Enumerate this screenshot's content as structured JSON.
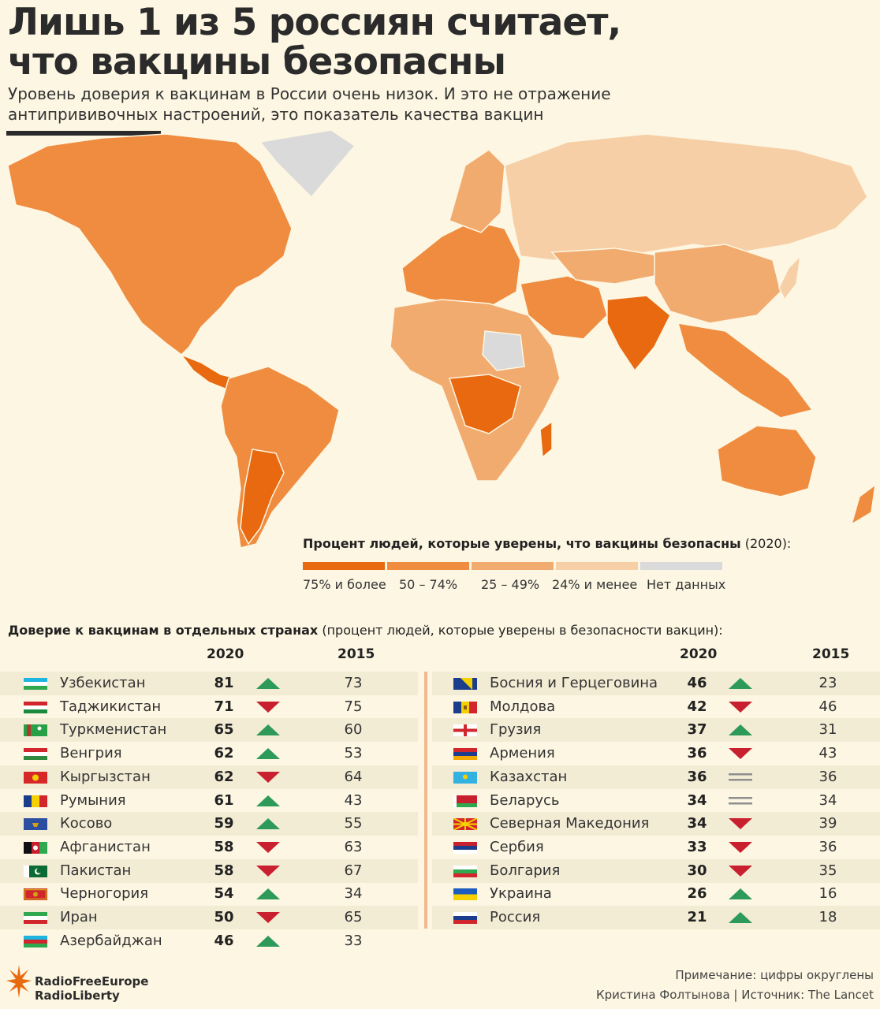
{
  "header": {
    "title_line1": "Лишь 1 из 5 россиян считает,",
    "title_line2": "что вакцины безопасны",
    "subtitle_line1": "Уровень доверия к вакцинам в России очень низок. И это не отражение",
    "subtitle_line2": "антипрививочных настроений, это показатель качества вакцин"
  },
  "legend": {
    "title_bold": "Процент людей, которые уверены, что вакцины безопасны",
    "title_suffix": " (2020):",
    "items": [
      {
        "label": "75% и более",
        "color": "#e8690f"
      },
      {
        "label": "50 – 74%",
        "color": "#ef8c3f"
      },
      {
        "label": "25 – 49%",
        "color": "#f2ab6f"
      },
      {
        "label": "24% и менее",
        "color": "#f7cfa6"
      },
      {
        "label": "Нет данных",
        "color": "#dadada"
      }
    ]
  },
  "table": {
    "title_bold": "Доверие к вакцинам в отдельных странах",
    "title_suffix": " (процент людей, которые уверены в безопасности вакцин):",
    "col_2020": "2020",
    "col_2015": "2015",
    "left": [
      {
        "country": "Узбекистан",
        "v2020": "81",
        "trend": "up",
        "v2015": "73",
        "flag": "uz"
      },
      {
        "country": "Таджикистан",
        "v2020": "71",
        "trend": "down",
        "v2015": "75",
        "flag": "tj"
      },
      {
        "country": "Туркменистан",
        "v2020": "65",
        "trend": "up",
        "v2015": "60",
        "flag": "tm"
      },
      {
        "country": "Венгрия",
        "v2020": "62",
        "trend": "up",
        "v2015": "53",
        "flag": "hu"
      },
      {
        "country": "Кыргызстан",
        "v2020": "62",
        "trend": "down",
        "v2015": "64",
        "flag": "kg"
      },
      {
        "country": "Румыния",
        "v2020": "61",
        "trend": "up",
        "v2015": "43",
        "flag": "ro"
      },
      {
        "country": "Косово",
        "v2020": "59",
        "trend": "up",
        "v2015": "55",
        "flag": "xk"
      },
      {
        "country": "Афганистан",
        "v2020": "58",
        "trend": "down",
        "v2015": "63",
        "flag": "af"
      },
      {
        "country": "Пакистан",
        "v2020": "58",
        "trend": "down",
        "v2015": "67",
        "flag": "pk"
      },
      {
        "country": "Черногория",
        "v2020": "54",
        "trend": "up",
        "v2015": "34",
        "flag": "me"
      },
      {
        "country": "Иран",
        "v2020": "50",
        "trend": "down",
        "v2015": "65",
        "flag": "ir"
      },
      {
        "country": "Азербайджан",
        "v2020": "46",
        "trend": "up",
        "v2015": "33",
        "flag": "az"
      }
    ],
    "right": [
      {
        "country": "Босния и Герцеговина",
        "v2020": "46",
        "trend": "up",
        "v2015": "23",
        "flag": "ba"
      },
      {
        "country": "Молдова",
        "v2020": "42",
        "trend": "down",
        "v2015": "46",
        "flag": "md"
      },
      {
        "country": "Грузия",
        "v2020": "37",
        "trend": "up",
        "v2015": "31",
        "flag": "ge"
      },
      {
        "country": "Армения",
        "v2020": "36",
        "trend": "down",
        "v2015": "43",
        "flag": "am"
      },
      {
        "country": "Казахстан",
        "v2020": "36",
        "trend": "same",
        "v2015": "36",
        "flag": "kz"
      },
      {
        "country": "Беларусь",
        "v2020": "34",
        "trend": "same",
        "v2015": "34",
        "flag": "by"
      },
      {
        "country": "Северная Македония",
        "v2020": "34",
        "trend": "down",
        "v2015": "39",
        "flag": "mk"
      },
      {
        "country": "Сербия",
        "v2020": "33",
        "trend": "down",
        "v2015": "36",
        "flag": "rs"
      },
      {
        "country": "Болгария",
        "v2020": "30",
        "trend": "down",
        "v2015": "35",
        "flag": "bg"
      },
      {
        "country": "Украина",
        "v2020": "26",
        "trend": "up",
        "v2015": "16",
        "flag": "ua"
      },
      {
        "country": "Россия",
        "v2020": "21",
        "trend": "up",
        "v2015": "18",
        "flag": "ru"
      }
    ]
  },
  "footer": {
    "logo_line1": "RadioFreeEurope",
    "logo_line2": "RadioLiberty",
    "note": "Примечание: цифры округлены",
    "credit": "Кристина Фолтынова | Источник: The Lancet"
  },
  "colors": {
    "up": "#2e9a5a",
    "down": "#c8202e",
    "same": "#8e8e8e",
    "accent": "#e8690f"
  }
}
